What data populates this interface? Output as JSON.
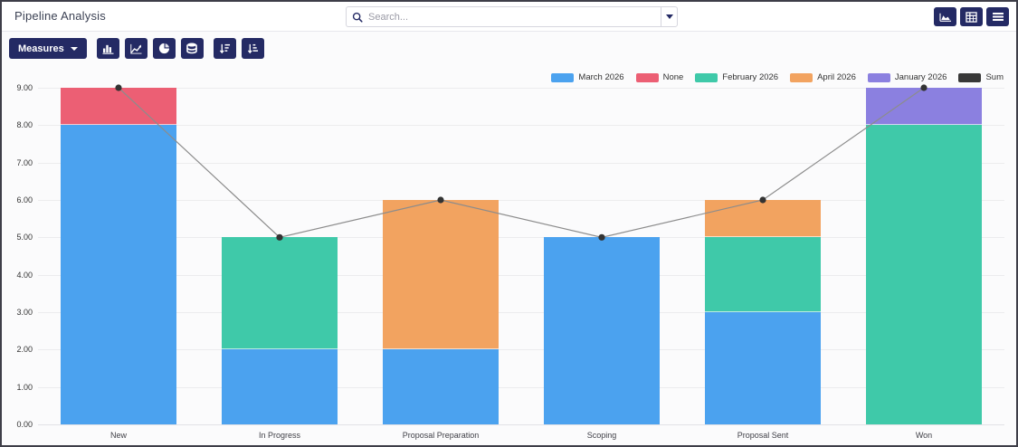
{
  "window": {
    "title": "Pipeline Analysis"
  },
  "search": {
    "placeholder": "Search..."
  },
  "toolbar": {
    "measures_label": "Measures",
    "buttons": [
      "bar-chart",
      "line-chart",
      "pie-chart",
      "stacked",
      "sort-descending",
      "sort-ascending"
    ]
  },
  "view_switcher": [
    "graph-view",
    "pivot-view",
    "list-view"
  ],
  "icons": {
    "search-icon": "magnifier",
    "caret-down-icon": "▼",
    "bar-chart-icon": "vertical bars",
    "line-chart-icon": "trend line",
    "pie-chart-icon": "pie",
    "stacked-icon": "database cylinder",
    "sort-desc-icon": "arrow down with decreasing bars",
    "sort-asc-icon": "arrow down with increasing bars",
    "graph-view-icon": "area chart",
    "pivot-view-icon": "pivot grid",
    "list-view-icon": "list lines"
  },
  "colors": {
    "primary": "#242a64",
    "border": "#3e3e48",
    "grid": "#ececee",
    "sum_line": "#8c8c8c",
    "sum_point": "#333333"
  },
  "chart_data": {
    "type": "bar",
    "stacked": true,
    "title": "",
    "xlabel": "",
    "ylabel": "",
    "categories": [
      "New",
      "In Progress",
      "Proposal Preparation",
      "Scoping",
      "Proposal Sent",
      "Won"
    ],
    "series": [
      {
        "name": "March 2026",
        "type": "bar",
        "color": "#4ba2ef",
        "values": [
          8,
          2,
          2,
          5,
          3,
          0
        ]
      },
      {
        "name": "None",
        "type": "bar",
        "color": "#ec5f74",
        "values": [
          1,
          0,
          0,
          0,
          0,
          0
        ]
      },
      {
        "name": "February 2026",
        "type": "bar",
        "color": "#3fc9a9",
        "values": [
          0,
          3,
          0,
          0,
          2,
          8
        ]
      },
      {
        "name": "April 2026",
        "type": "bar",
        "color": "#f2a360",
        "values": [
          0,
          0,
          4,
          0,
          1,
          0
        ]
      },
      {
        "name": "January 2026",
        "type": "bar",
        "color": "#8b80e0",
        "values": [
          0,
          0,
          0,
          0,
          0,
          1
        ]
      },
      {
        "name": "Sum",
        "type": "line",
        "color": "#383838",
        "values": [
          9,
          5,
          6,
          5,
          6,
          9
        ]
      }
    ],
    "stack_order": [
      "March 2026",
      "February 2026",
      "April 2026",
      "None",
      "January 2026"
    ],
    "ylim": [
      0,
      9
    ],
    "ytick_labels": [
      "0.00",
      "1.00",
      "2.00",
      "3.00",
      "4.00",
      "5.00",
      "6.00",
      "7.00",
      "8.00",
      "9.00"
    ],
    "grid": true,
    "legend_position": "top-right"
  }
}
